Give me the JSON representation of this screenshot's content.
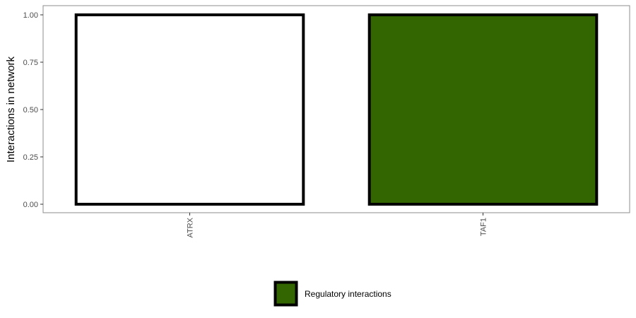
{
  "chart_data": {
    "type": "bar",
    "categories": [
      "ATRX",
      "TAF1"
    ],
    "series": [
      {
        "name": "Regulatory interactions",
        "values": [
          0,
          1
        ],
        "color": "#336600"
      }
    ],
    "totals": [
      1,
      1
    ],
    "background_fill": "#ffffff",
    "outline_color": "#000000",
    "ylabel": "Interactions in network",
    "xlabel": "",
    "ylim": [
      0,
      1
    ],
    "yticks": [
      0,
      0.25,
      0.5,
      0.75,
      1
    ],
    "ytick_labels": [
      "0.00",
      "0.25",
      "0.50",
      "0.75",
      "1.00"
    ],
    "grid": false,
    "legend": {
      "position": "bottom",
      "entries": [
        {
          "label": "Regulatory interactions",
          "color": "#336600"
        }
      ]
    }
  }
}
